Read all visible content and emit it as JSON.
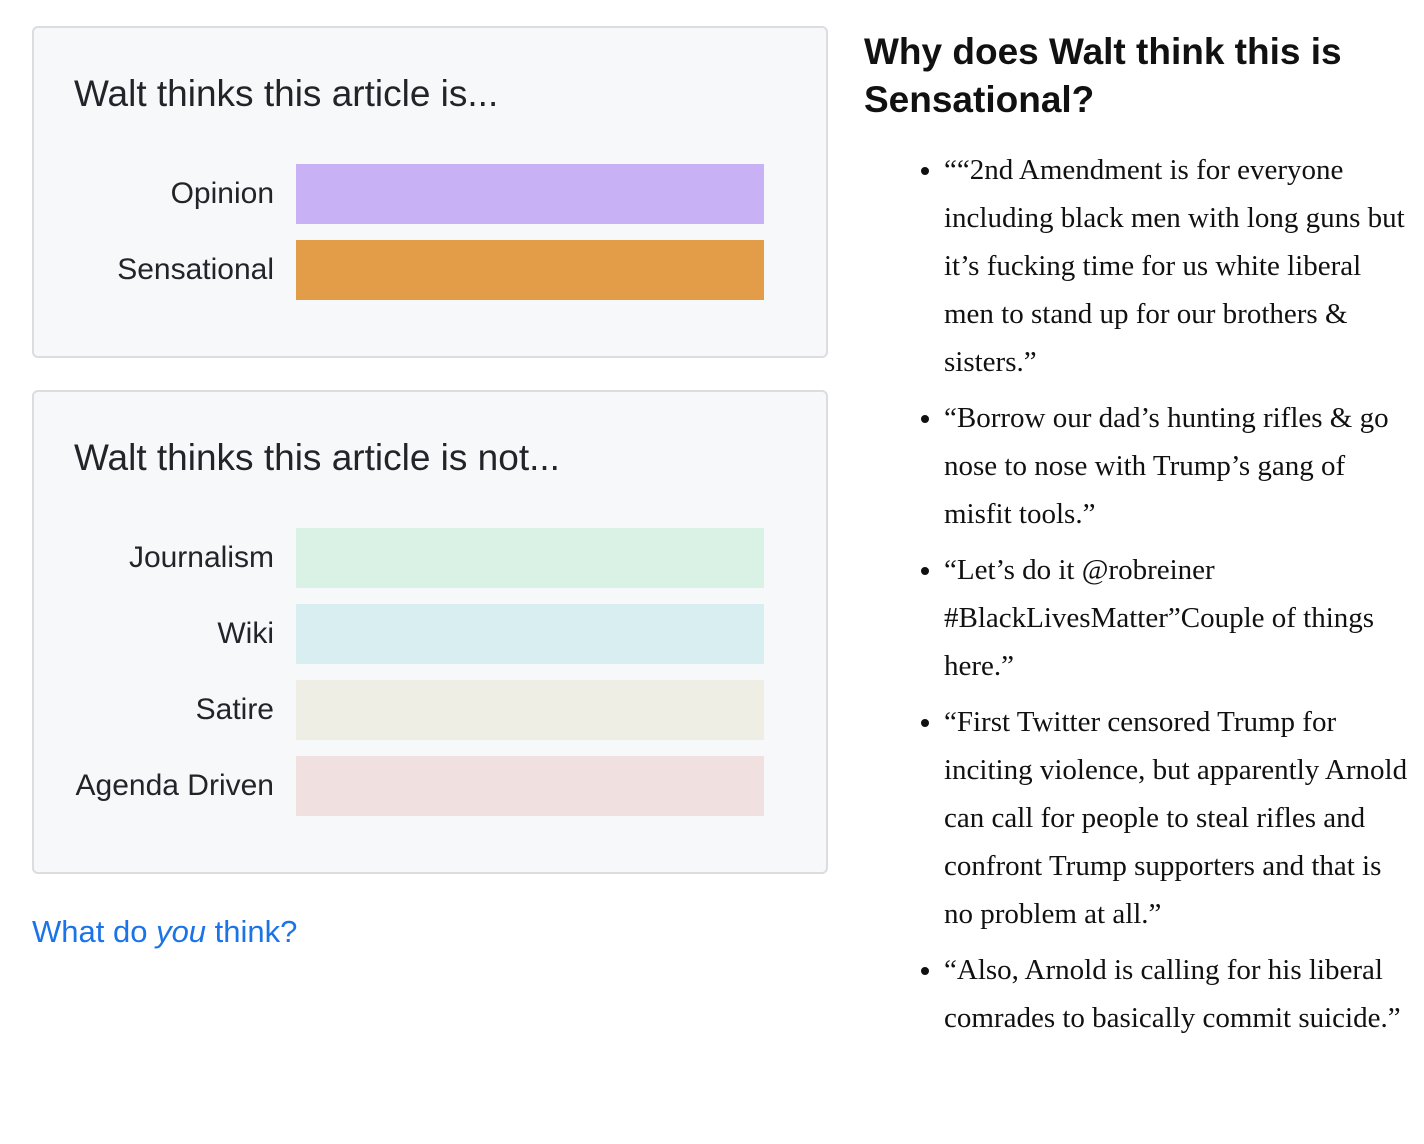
{
  "is_card": {
    "title": "Walt thinks this article is...",
    "rows": [
      {
        "label": "Opinion",
        "color": "#c8b1f5"
      },
      {
        "label": "Sensational",
        "color": "#e39c48"
      }
    ]
  },
  "not_card": {
    "title": "Walt thinks this article is not...",
    "rows": [
      {
        "label": "Journalism",
        "color": "#daf2e6"
      },
      {
        "label": "Wiki",
        "color": "#d9eef0"
      },
      {
        "label": "Satire",
        "color": "#eeeee4"
      },
      {
        "label": "Agenda Driven",
        "color": "#f1e0e0"
      }
    ]
  },
  "cta": {
    "before": "What do ",
    "emphasis": "you",
    "after": " think?"
  },
  "reasons": {
    "title": "Why does Walt think this is Sensational?",
    "items": [
      "““2nd Amendment is for everyone including black men with long guns but it’s fucking time for us white liberal men to stand up for our brothers & sisters.”",
      "“Borrow our dad’s hunting rifles & go nose to nose with Trump’s gang of misfit tools.”",
      "“Let’s do it @robreiner #BlackLivesMatter”Couple of things here.”",
      "“First Twitter censored Trump for inciting violence, but apparently Arnold can call for people to steal rifles and confront Trump supporters and that is no problem at all.”",
      "“Also, Arnold is calling for his liberal comrades to basically commit suicide.”"
    ]
  }
}
